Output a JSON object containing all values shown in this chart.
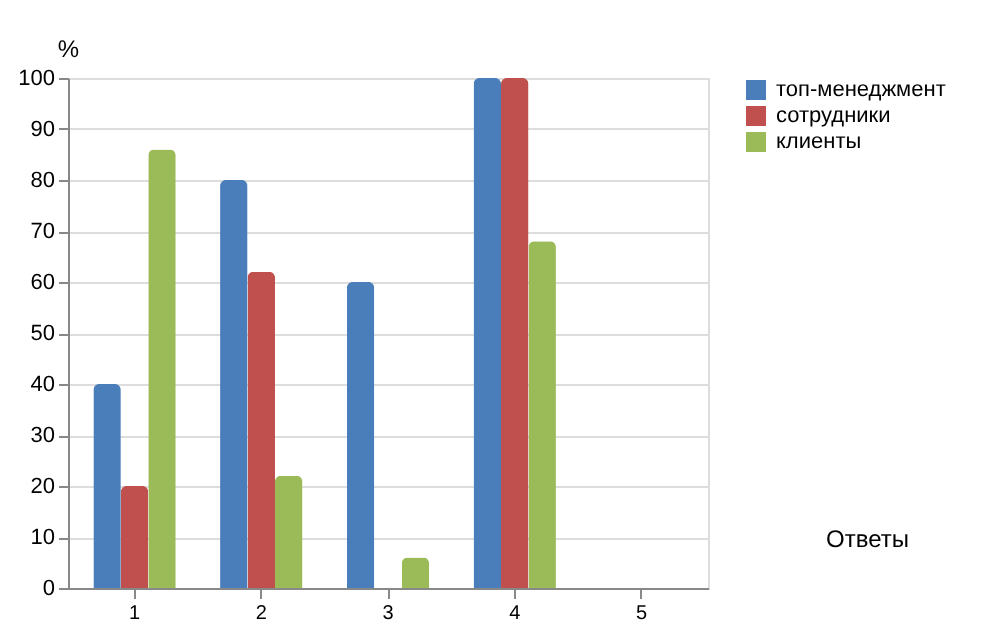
{
  "chart_data": {
    "type": "bar",
    "xlabel": "Ответы",
    "ylabel": "%",
    "categories": [
      "1",
      "2",
      "3",
      "4",
      "5"
    ],
    "series": [
      {
        "name": "топ-менеджмент",
        "color": "#4a7ebb",
        "values": [
          40,
          80,
          60,
          100,
          0
        ]
      },
      {
        "name": "сотрудники",
        "color": "#c0504d",
        "values": [
          20,
          62,
          0,
          100,
          0
        ]
      },
      {
        "name": "клиенты",
        "color": "#9bbb59",
        "values": [
          86,
          22,
          6,
          68,
          0
        ]
      }
    ],
    "ylim": [
      0,
      100
    ],
    "yticks": [
      0,
      10,
      20,
      30,
      40,
      50,
      60,
      70,
      80,
      90,
      100
    ],
    "grid": "y",
    "legend": "right"
  }
}
